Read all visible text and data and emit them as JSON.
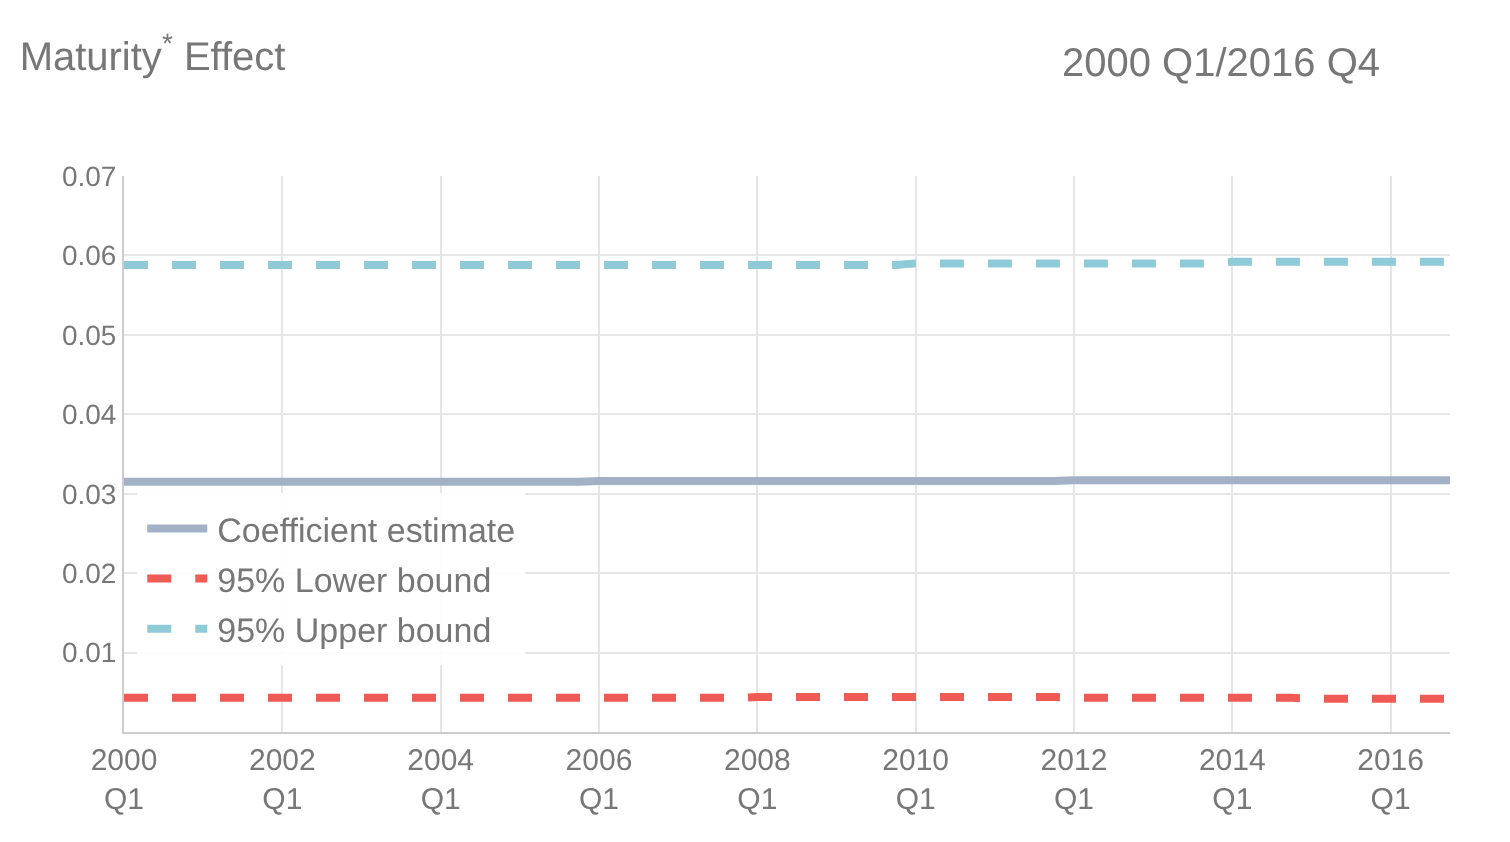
{
  "chart_data": {
    "type": "line",
    "title": "Maturity$^{*}$ Effect",
    "subtitle": "2000 Q1/2016 Q4",
    "categories": [
      "2000\nQ1",
      null,
      null,
      null,
      null,
      null,
      null,
      null,
      "2002\nQ1",
      null,
      null,
      null,
      null,
      null,
      null,
      null,
      "2004\nQ1",
      null,
      null,
      null,
      null,
      null,
      null,
      null,
      "2006\nQ1",
      null,
      null,
      null,
      null,
      null,
      null,
      null,
      "2008\nQ1",
      null,
      null,
      null,
      null,
      null,
      null,
      null,
      "2010\nQ1",
      null,
      null,
      null,
      null,
      null,
      null,
      null,
      "2012\nQ1",
      null,
      null,
      null,
      null,
      null,
      null,
      null,
      "2014\nQ1",
      null,
      null,
      null,
      null,
      null,
      null,
      null,
      "2016\nQ1",
      null,
      null,
      null
    ],
    "series": [
      {
        "name": "Coefficient estimate",
        "color": "#a3b1c6",
        "line_style": "solid",
        "values": [
          0.0315,
          0.0315,
          0.0315,
          0.0315,
          0.0315,
          0.0315,
          0.0315,
          0.0315,
          0.0315,
          0.0315,
          0.0315,
          0.0315,
          0.0315,
          0.0315,
          0.0315,
          0.0315,
          0.0315,
          0.0315,
          0.0315,
          0.0315,
          0.0315,
          0.0315,
          0.0315,
          0.0315,
          0.0316,
          0.0316,
          0.0316,
          0.0316,
          0.0316,
          0.0316,
          0.0316,
          0.0316,
          0.0316,
          0.0316,
          0.0316,
          0.0316,
          0.0316,
          0.0316,
          0.0316,
          0.0316,
          0.0316,
          0.0316,
          0.0316,
          0.0316,
          0.0316,
          0.0316,
          0.0316,
          0.0316,
          0.0317,
          0.0317,
          0.0317,
          0.0317,
          0.0317,
          0.0317,
          0.0317,
          0.0317,
          0.0317,
          0.0317,
          0.0317,
          0.0317,
          0.0317,
          0.0317,
          0.0317,
          0.0317,
          0.0317,
          0.0317,
          0.0317,
          0.0317
        ]
      },
      {
        "name": "95% Lower bound",
        "color": "#ef5a55",
        "line_style": "dashed",
        "values": [
          0.0043,
          0.0043,
          0.0043,
          0.0043,
          0.0043,
          0.0043,
          0.0043,
          0.0043,
          0.0043,
          0.0043,
          0.0043,
          0.0043,
          0.0043,
          0.0043,
          0.0043,
          0.0043,
          0.0043,
          0.0043,
          0.0043,
          0.0043,
          0.0043,
          0.0043,
          0.0043,
          0.0043,
          0.0043,
          0.0043,
          0.0043,
          0.0043,
          0.0043,
          0.0043,
          0.0043,
          0.0043,
          0.0044,
          0.0044,
          0.0044,
          0.0044,
          0.0044,
          0.0044,
          0.0044,
          0.0044,
          0.0044,
          0.0044,
          0.0044,
          0.0044,
          0.0044,
          0.0044,
          0.0044,
          0.0044,
          0.0043,
          0.0043,
          0.0043,
          0.0043,
          0.0043,
          0.0043,
          0.0043,
          0.0043,
          0.0043,
          0.0043,
          0.0043,
          0.0043,
          0.0042,
          0.0042,
          0.0042,
          0.0042,
          0.0042,
          0.0042,
          0.0042,
          0.0042
        ]
      },
      {
        "name": "95% Upper bound",
        "color": "#8ecad8",
        "line_style": "dashed",
        "values": [
          0.0588,
          0.0588,
          0.0588,
          0.0588,
          0.0588,
          0.0588,
          0.0588,
          0.0588,
          0.0588,
          0.0588,
          0.0588,
          0.0588,
          0.0588,
          0.0588,
          0.0588,
          0.0588,
          0.0588,
          0.0588,
          0.0588,
          0.0588,
          0.0588,
          0.0588,
          0.0588,
          0.0588,
          0.0588,
          0.0588,
          0.0588,
          0.0588,
          0.0588,
          0.0588,
          0.0588,
          0.0588,
          0.0588,
          0.0588,
          0.0588,
          0.0588,
          0.0588,
          0.0588,
          0.0588,
          0.0588,
          0.059,
          0.059,
          0.059,
          0.059,
          0.059,
          0.059,
          0.059,
          0.059,
          0.059,
          0.059,
          0.059,
          0.059,
          0.059,
          0.059,
          0.059,
          0.059,
          0.0592,
          0.0592,
          0.0592,
          0.0592,
          0.0592,
          0.0592,
          0.0592,
          0.0592,
          0.0592,
          0.0592,
          0.0592,
          0.0592
        ]
      }
    ],
    "ylim": [
      0,
      0.07
    ],
    "yticks": [
      0.01,
      0.02,
      0.03,
      0.04,
      0.05,
      0.06,
      0.07
    ],
    "grid": true,
    "legend": "bottom left",
    "marker": "none"
  }
}
